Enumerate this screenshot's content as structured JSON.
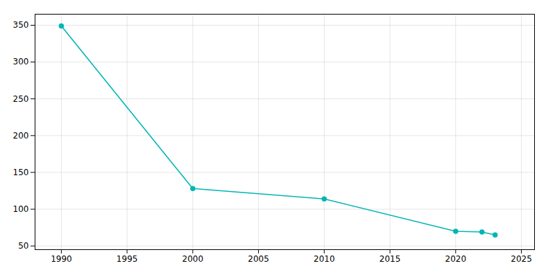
{
  "chart_data": {
    "type": "line",
    "x": [
      1990,
      2000,
      2010,
      2020,
      2022,
      2023
    ],
    "values": [
      349,
      128,
      114,
      70,
      69,
      65
    ],
    "color": "#00B5B5",
    "marker": "circle",
    "xlim": [
      1988,
      2026
    ],
    "ylim": [
      45,
      365
    ],
    "xticks": [
      1990,
      1995,
      2000,
      2005,
      2010,
      2015,
      2020,
      2025
    ],
    "yticks": [
      50,
      100,
      150,
      200,
      250,
      300,
      350
    ],
    "grid": true
  }
}
